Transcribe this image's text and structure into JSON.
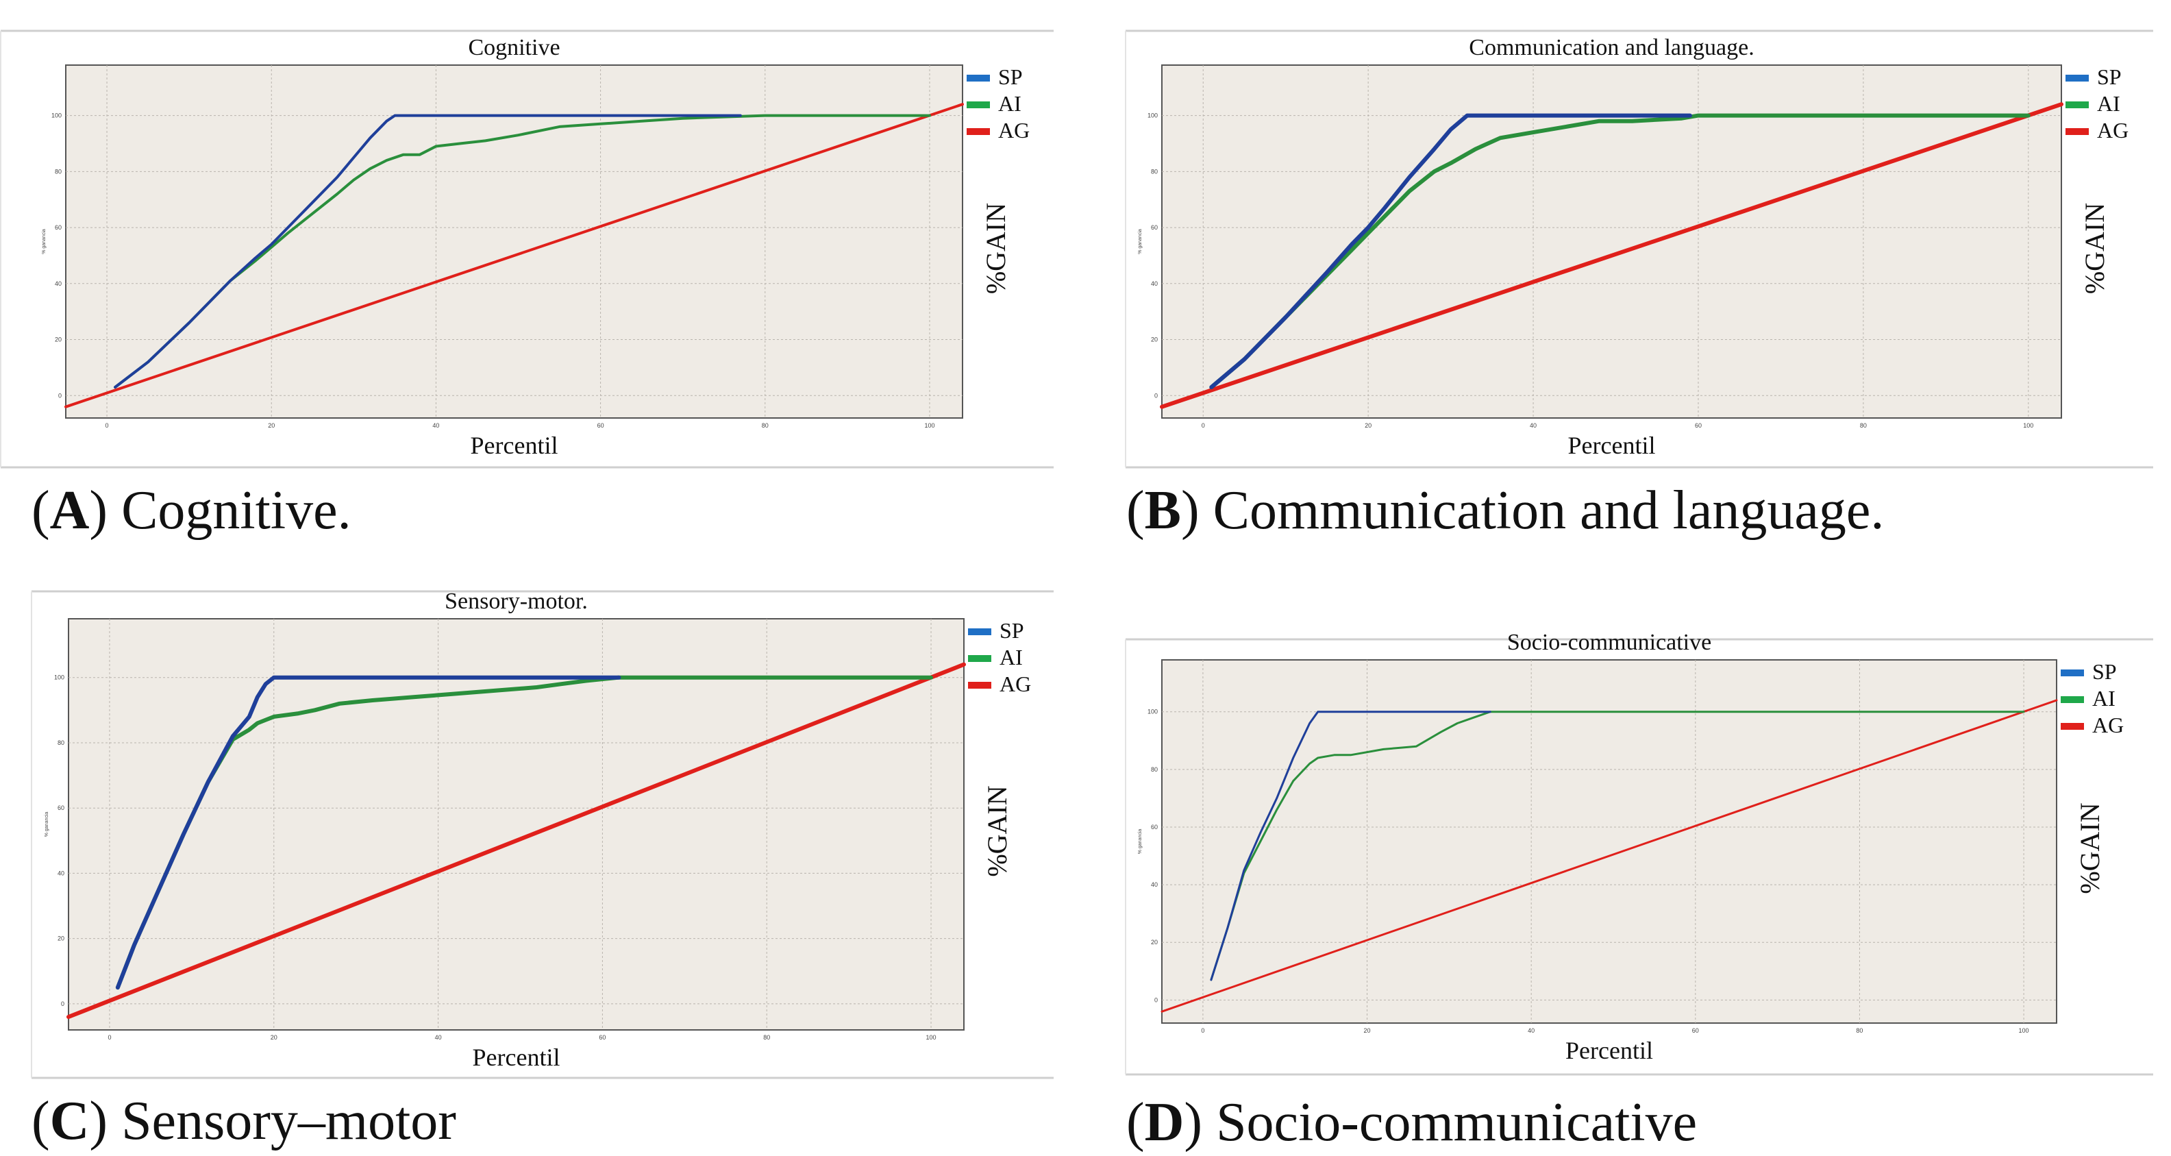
{
  "figure": {
    "x_axis_label": "Percentil",
    "y_axis_label": "%GAIN",
    "y_axis_small_title": "% ganancia",
    "legend": [
      {
        "label": "SP",
        "color": "#1f6fc5"
      },
      {
        "label": "AI",
        "color": "#1fa84a"
      },
      {
        "label": "AG",
        "color": "#e0201b"
      }
    ],
    "colors": {
      "sp_line": "#1f3f9a",
      "ai_line": "#2a8f3c",
      "ag_line": "#e0201b",
      "plot_bg": "#efebe5"
    }
  },
  "chart_data": [
    {
      "type": "line",
      "title": "Cognitive",
      "caption_letter": "A",
      "caption_text": "Cognitive.",
      "xlabel": "Percentil",
      "ylabel": "%GAIN",
      "xlim": [
        -5,
        104
      ],
      "ylim": [
        -8,
        118
      ],
      "x_ticks": [
        0,
        20,
        40,
        60,
        80,
        100
      ],
      "y_ticks": [
        0,
        20,
        40,
        60,
        80,
        100
      ],
      "line_width": 4,
      "series": [
        {
          "name": "SP",
          "x": [
            1,
            5,
            10,
            15,
            18,
            20,
            22,
            25,
            28,
            30,
            32,
            34,
            35,
            40,
            60,
            77
          ],
          "y": [
            3,
            12,
            26,
            41,
            49,
            54,
            60,
            69,
            78,
            85,
            92,
            98,
            100,
            100,
            100,
            100
          ]
        },
        {
          "name": "AI",
          "x": [
            1,
            5,
            10,
            15,
            18,
            20,
            22,
            25,
            28,
            30,
            32,
            34,
            36,
            38,
            40,
            43,
            46,
            50,
            55,
            60,
            65,
            70,
            80,
            100
          ],
          "y": [
            3,
            12,
            26,
            41,
            48,
            53,
            58,
            65,
            72,
            77,
            81,
            84,
            86,
            86,
            89,
            90,
            91,
            93,
            96,
            97,
            98,
            99,
            100,
            100
          ]
        },
        {
          "name": "AG",
          "x": [
            -5,
            104
          ],
          "y": [
            -4,
            104
          ]
        }
      ]
    },
    {
      "type": "line",
      "title": "Communication and language.",
      "caption_letter": "B",
      "caption_text": "Communication and language.",
      "xlabel": "Percentil",
      "ylabel": "%GAIN",
      "xlim": [
        -5,
        104
      ],
      "ylim": [
        -8,
        118
      ],
      "x_ticks": [
        0,
        20,
        40,
        60,
        80,
        100
      ],
      "y_ticks": [
        0,
        20,
        40,
        60,
        80,
        100
      ],
      "line_width": 6,
      "series": [
        {
          "name": "SP",
          "x": [
            1,
            5,
            10,
            15,
            18,
            20,
            22,
            25,
            28,
            30,
            32,
            35,
            40,
            50,
            59
          ],
          "y": [
            3,
            13,
            28,
            44,
            54,
            60,
            67,
            78,
            88,
            95,
            100,
            100,
            100,
            100,
            100
          ]
        },
        {
          "name": "AI",
          "x": [
            1,
            5,
            10,
            15,
            18,
            20,
            22,
            25,
            28,
            30,
            33,
            36,
            40,
            44,
            48,
            52,
            58,
            60,
            100
          ],
          "y": [
            3,
            13,
            28,
            43,
            52,
            58,
            64,
            73,
            80,
            83,
            88,
            92,
            94,
            96,
            98,
            98,
            99,
            100,
            100
          ]
        },
        {
          "name": "AG",
          "x": [
            -5,
            104
          ],
          "y": [
            -4,
            104
          ]
        }
      ]
    },
    {
      "type": "line",
      "title": "Sensory-motor.",
      "caption_letter": "C",
      "caption_text": "Sensory–motor",
      "xlabel": "Percentil",
      "ylabel": "%GAIN",
      "xlim": [
        -5,
        104
      ],
      "ylim": [
        -8,
        118
      ],
      "x_ticks": [
        0,
        20,
        40,
        60,
        80,
        100
      ],
      "y_ticks": [
        0,
        20,
        40,
        60,
        80,
        100
      ],
      "line_width": 6,
      "series": [
        {
          "name": "SP",
          "x": [
            1,
            3,
            6,
            9,
            12,
            15,
            17,
            18,
            19,
            20,
            25,
            40,
            62
          ],
          "y": [
            5,
            18,
            35,
            52,
            68,
            82,
            88,
            94,
            98,
            100,
            100,
            100,
            100
          ]
        },
        {
          "name": "AI",
          "x": [
            1,
            3,
            6,
            9,
            12,
            15,
            17,
            18,
            19,
            20,
            23,
            25,
            28,
            32,
            37,
            42,
            47,
            52,
            55,
            58,
            62,
            100
          ],
          "y": [
            5,
            18,
            35,
            52,
            68,
            81,
            84,
            86,
            87,
            88,
            89,
            90,
            92,
            93,
            94,
            95,
            96,
            97,
            98,
            99,
            100,
            100
          ]
        },
        {
          "name": "AG",
          "x": [
            -5,
            104
          ],
          "y": [
            -4,
            104
          ]
        }
      ]
    },
    {
      "type": "line",
      "title": "Socio-communicative",
      "caption_letter": "D",
      "caption_text": "Socio-communicative",
      "xlabel": "Percentil",
      "ylabel": "%GAIN",
      "xlim": [
        -5,
        104
      ],
      "ylim": [
        -8,
        118
      ],
      "x_ticks": [
        0,
        20,
        40,
        60,
        80,
        100
      ],
      "y_ticks": [
        0,
        20,
        40,
        60,
        80,
        100
      ],
      "line_width": 3,
      "series": [
        {
          "name": "SP",
          "x": [
            1,
            3,
            5,
            7,
            9,
            11,
            13,
            14,
            15,
            20,
            30,
            35
          ],
          "y": [
            7,
            25,
            45,
            58,
            70,
            84,
            96,
            100,
            100,
            100,
            100,
            100
          ]
        },
        {
          "name": "AI",
          "x": [
            1,
            3,
            5,
            7,
            9,
            11,
            12,
            13,
            14,
            16,
            18,
            20,
            22,
            26,
            29,
            31,
            33,
            35,
            40,
            100
          ],
          "y": [
            7,
            25,
            44,
            55,
            66,
            76,
            79,
            82,
            84,
            85,
            85,
            86,
            87,
            88,
            93,
            96,
            98,
            100,
            100,
            100
          ]
        },
        {
          "name": "AG",
          "x": [
            -5,
            104
          ],
          "y": [
            -4,
            104
          ]
        }
      ]
    }
  ]
}
